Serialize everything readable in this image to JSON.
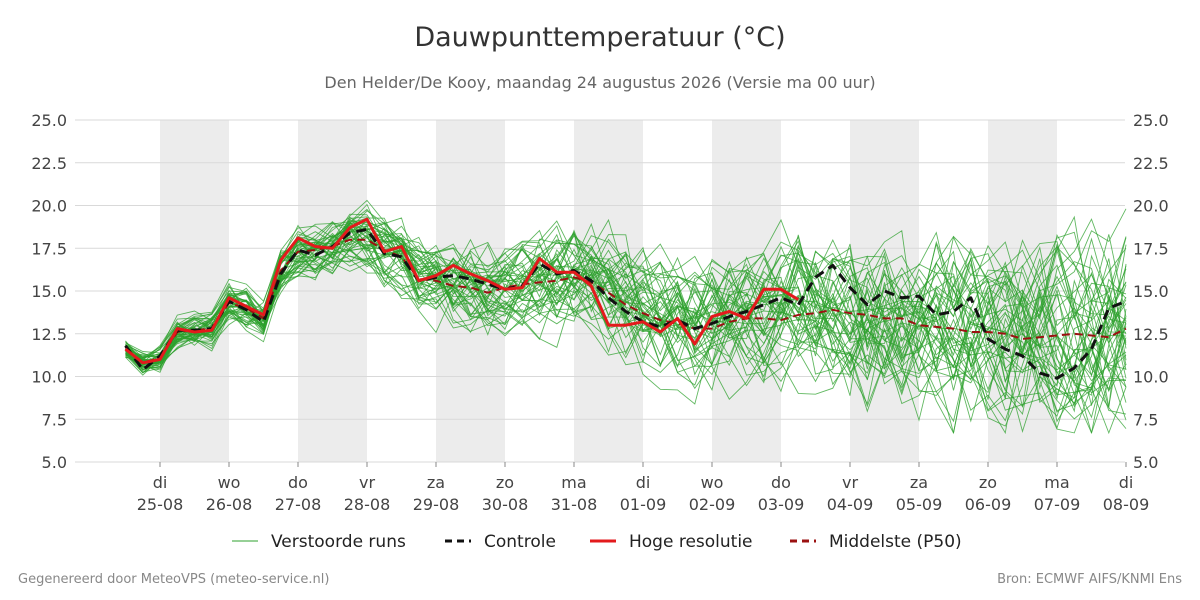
{
  "chart_data": {
    "type": "line",
    "title": "Dauwpunttemperatuur (°C)",
    "subtitle": "Den Helder/De Kooy, maandag 24 augustus 2026 (Versie ma 00 uur)",
    "ylim": [
      5,
      25
    ],
    "xlim": [
      "2026-08-24T12:00",
      "2026-09-08T00:00"
    ],
    "yticks": [
      5.0,
      7.5,
      10.0,
      12.5,
      15.0,
      17.5,
      20.0,
      22.5,
      25.0
    ],
    "yaxis_both_sides": true,
    "grid": "horizontal",
    "weekend_shading": "alternating days",
    "xticks": [
      {
        "date": "2026-08-25",
        "day": "di",
        "label": "25-08"
      },
      {
        "date": "2026-08-26",
        "day": "wo",
        "label": "26-08"
      },
      {
        "date": "2026-08-27",
        "day": "do",
        "label": "27-08"
      },
      {
        "date": "2026-08-28",
        "day": "vr",
        "label": "28-08"
      },
      {
        "date": "2026-08-29",
        "day": "za",
        "label": "29-08"
      },
      {
        "date": "2026-08-30",
        "day": "zo",
        "label": "30-08"
      },
      {
        "date": "2026-08-31",
        "day": "ma",
        "label": "31-08"
      },
      {
        "date": "2026-09-01",
        "day": "di",
        "label": "01-09"
      },
      {
        "date": "2026-09-02",
        "day": "wo",
        "label": "02-09"
      },
      {
        "date": "2026-09-03",
        "day": "do",
        "label": "03-09"
      },
      {
        "date": "2026-09-04",
        "day": "vr",
        "label": "04-09"
      },
      {
        "date": "2026-09-05",
        "day": "za",
        "label": "05-09"
      },
      {
        "date": "2026-09-06",
        "day": "zo",
        "label": "06-09"
      },
      {
        "date": "2026-09-07",
        "day": "ma",
        "label": "07-09"
      },
      {
        "date": "2026-09-08",
        "day": "di",
        "label": "08-09"
      }
    ],
    "shaded_days": [
      "2026-08-25",
      "2026-08-27",
      "2026-08-29",
      "2026-08-31",
      "2026-09-02",
      "2026-09-04",
      "2026-09-06"
    ],
    "series": [
      {
        "name": "Controle",
        "color": "#111111",
        "dash": true,
        "points": [
          [
            "2026-08-24T12:00",
            11.8
          ],
          [
            "2026-08-24T18:00",
            10.4
          ],
          [
            "2026-08-25T00:00",
            11.2
          ],
          [
            "2026-08-25T06:00",
            12.7
          ],
          [
            "2026-08-25T12:00",
            12.7
          ],
          [
            "2026-08-25T18:00",
            12.8
          ],
          [
            "2026-08-26T00:00",
            14.4
          ],
          [
            "2026-08-26T06:00",
            13.9
          ],
          [
            "2026-08-26T12:00",
            13.2
          ],
          [
            "2026-08-26T18:00",
            16.0
          ],
          [
            "2026-08-27T00:00",
            17.4
          ],
          [
            "2026-08-27T06:00",
            17.1
          ],
          [
            "2026-08-27T12:00",
            17.6
          ],
          [
            "2026-08-27T18:00",
            18.4
          ],
          [
            "2026-08-28T00:00",
            18.6
          ],
          [
            "2026-08-28T06:00",
            17.2
          ],
          [
            "2026-08-28T12:00",
            17.0
          ],
          [
            "2026-08-28T18:00",
            15.6
          ],
          [
            "2026-08-29T00:00",
            15.8
          ],
          [
            "2026-08-29T06:00",
            15.9
          ],
          [
            "2026-08-29T12:00",
            15.7
          ],
          [
            "2026-08-29T18:00",
            15.4
          ],
          [
            "2026-08-30T00:00",
            15.1
          ],
          [
            "2026-08-30T06:00",
            15.3
          ],
          [
            "2026-08-30T12:00",
            16.6
          ],
          [
            "2026-08-30T18:00",
            16.0
          ],
          [
            "2026-08-31T00:00",
            16.2
          ],
          [
            "2026-08-31T06:00",
            15.6
          ],
          [
            "2026-08-31T12:00",
            14.6
          ],
          [
            "2026-08-31T18:00",
            13.8
          ],
          [
            "2026-09-01T00:00",
            13.2
          ],
          [
            "2026-09-01T06:00",
            12.9
          ],
          [
            "2026-09-01T12:00",
            13.3
          ],
          [
            "2026-09-01T18:00",
            12.8
          ],
          [
            "2026-09-02T00:00",
            13.1
          ],
          [
            "2026-09-02T06:00",
            13.5
          ],
          [
            "2026-09-02T12:00",
            13.8
          ],
          [
            "2026-09-02T18:00",
            14.2
          ],
          [
            "2026-09-03T00:00",
            14.6
          ],
          [
            "2026-09-03T06:00",
            14.2
          ],
          [
            "2026-09-03T12:00",
            15.8
          ],
          [
            "2026-09-03T18:00",
            16.5
          ],
          [
            "2026-09-04T00:00",
            15.2
          ],
          [
            "2026-09-04T06:00",
            14.2
          ],
          [
            "2026-09-04T12:00",
            15.0
          ],
          [
            "2026-09-04T18:00",
            14.6
          ],
          [
            "2026-09-05T00:00",
            14.7
          ],
          [
            "2026-09-05T06:00",
            13.6
          ],
          [
            "2026-09-05T12:00",
            13.8
          ],
          [
            "2026-09-05T18:00",
            14.6
          ],
          [
            "2026-09-06T00:00",
            12.2
          ],
          [
            "2026-09-06T06:00",
            11.6
          ],
          [
            "2026-09-06T12:00",
            11.2
          ],
          [
            "2026-09-06T18:00",
            10.2
          ],
          [
            "2026-09-07T00:00",
            9.9
          ],
          [
            "2026-09-07T06:00",
            10.5
          ],
          [
            "2026-09-07T12:00",
            11.6
          ],
          [
            "2026-09-07T18:00",
            14.0
          ],
          [
            "2026-09-08T00:00",
            14.4
          ]
        ]
      },
      {
        "name": "Hoge resolutie",
        "color": "#e31a1c",
        "dash": false,
        "points": [
          [
            "2026-08-24T12:00",
            11.6
          ],
          [
            "2026-08-24T18:00",
            10.8
          ],
          [
            "2026-08-25T00:00",
            11.0
          ],
          [
            "2026-08-25T06:00",
            12.8
          ],
          [
            "2026-08-25T12:00",
            12.6
          ],
          [
            "2026-08-25T18:00",
            12.7
          ],
          [
            "2026-08-26T00:00",
            14.6
          ],
          [
            "2026-08-26T06:00",
            14.1
          ],
          [
            "2026-08-26T12:00",
            13.6
          ],
          [
            "2026-08-26T18:00",
            16.8
          ],
          [
            "2026-08-27T00:00",
            18.1
          ],
          [
            "2026-08-27T06:00",
            17.6
          ],
          [
            "2026-08-27T12:00",
            17.5
          ],
          [
            "2026-08-27T18:00",
            18.7
          ],
          [
            "2026-08-28T00:00",
            19.2
          ],
          [
            "2026-08-28T06:00",
            17.3
          ],
          [
            "2026-08-28T12:00",
            17.6
          ],
          [
            "2026-08-28T18:00",
            15.6
          ],
          [
            "2026-08-29T00:00",
            15.9
          ],
          [
            "2026-08-29T06:00",
            16.5
          ],
          [
            "2026-08-29T12:00",
            16.0
          ],
          [
            "2026-08-29T18:00",
            15.6
          ],
          [
            "2026-08-30T00:00",
            15.1
          ],
          [
            "2026-08-30T06:00",
            15.2
          ],
          [
            "2026-08-30T12:00",
            16.9
          ],
          [
            "2026-08-30T18:00",
            16.1
          ],
          [
            "2026-08-31T00:00",
            16.1
          ],
          [
            "2026-08-31T06:00",
            15.3
          ],
          [
            "2026-08-31T12:00",
            13.0
          ],
          [
            "2026-08-31T18:00",
            13.0
          ],
          [
            "2026-09-01T00:00",
            13.2
          ],
          [
            "2026-09-01T06:00",
            12.6
          ],
          [
            "2026-09-01T12:00",
            13.4
          ],
          [
            "2026-09-01T18:00",
            11.9
          ],
          [
            "2026-09-02T00:00",
            13.5
          ],
          [
            "2026-09-02T06:00",
            13.8
          ],
          [
            "2026-09-02T12:00",
            13.4
          ],
          [
            "2026-09-02T18:00",
            15.1
          ],
          [
            "2026-09-03T00:00",
            15.1
          ],
          [
            "2026-09-03T06:00",
            14.5
          ]
        ]
      },
      {
        "name": "Middelste (P50)",
        "color": "#9b1111",
        "dash": true,
        "points": [
          [
            "2026-08-24T12:00",
            11.6
          ],
          [
            "2026-08-24T18:00",
            10.8
          ],
          [
            "2026-08-25T00:00",
            11.1
          ],
          [
            "2026-08-25T06:00",
            12.6
          ],
          [
            "2026-08-25T12:00",
            12.7
          ],
          [
            "2026-08-25T18:00",
            12.8
          ],
          [
            "2026-08-26T00:00",
            14.3
          ],
          [
            "2026-08-26T06:00",
            14.0
          ],
          [
            "2026-08-26T12:00",
            13.4
          ],
          [
            "2026-08-26T18:00",
            16.2
          ],
          [
            "2026-08-27T00:00",
            17.3
          ],
          [
            "2026-08-27T06:00",
            17.4
          ],
          [
            "2026-08-27T12:00",
            17.6
          ],
          [
            "2026-08-27T18:00",
            18.0
          ],
          [
            "2026-08-28T00:00",
            18.0
          ],
          [
            "2026-08-28T06:00",
            17.4
          ],
          [
            "2026-08-28T12:00",
            17.0
          ],
          [
            "2026-08-28T18:00",
            15.7
          ],
          [
            "2026-08-29T00:00",
            15.6
          ],
          [
            "2026-08-29T06:00",
            15.3
          ],
          [
            "2026-08-29T12:00",
            15.2
          ],
          [
            "2026-08-29T18:00",
            14.9
          ],
          [
            "2026-08-30T00:00",
            15.2
          ],
          [
            "2026-08-30T06:00",
            15.4
          ],
          [
            "2026-08-30T12:00",
            15.5
          ],
          [
            "2026-08-30T18:00",
            15.6
          ],
          [
            "2026-08-31T00:00",
            15.8
          ],
          [
            "2026-08-31T06:00",
            15.5
          ],
          [
            "2026-08-31T12:00",
            14.9
          ],
          [
            "2026-08-31T18:00",
            14.2
          ],
          [
            "2026-09-01T00:00",
            13.7
          ],
          [
            "2026-09-01T06:00",
            13.3
          ],
          [
            "2026-09-01T12:00",
            13.1
          ],
          [
            "2026-09-01T18:00",
            12.8
          ],
          [
            "2026-09-02T00:00",
            12.8
          ],
          [
            "2026-09-02T06:00",
            13.2
          ],
          [
            "2026-09-02T12:00",
            13.4
          ],
          [
            "2026-09-02T18:00",
            13.4
          ],
          [
            "2026-09-03T00:00",
            13.3
          ],
          [
            "2026-09-03T06:00",
            13.6
          ],
          [
            "2026-09-03T12:00",
            13.7
          ],
          [
            "2026-09-03T18:00",
            13.9
          ],
          [
            "2026-09-04T00:00",
            13.7
          ],
          [
            "2026-09-04T06:00",
            13.6
          ],
          [
            "2026-09-04T12:00",
            13.4
          ],
          [
            "2026-09-04T18:00",
            13.4
          ],
          [
            "2026-09-05T00:00",
            13.0
          ],
          [
            "2026-09-05T06:00",
            12.9
          ],
          [
            "2026-09-05T12:00",
            12.8
          ],
          [
            "2026-09-05T18:00",
            12.6
          ],
          [
            "2026-09-06T00:00",
            12.6
          ],
          [
            "2026-09-06T06:00",
            12.5
          ],
          [
            "2026-09-06T12:00",
            12.2
          ],
          [
            "2026-09-06T18:00",
            12.3
          ],
          [
            "2026-09-07T00:00",
            12.4
          ],
          [
            "2026-09-07T06:00",
            12.5
          ],
          [
            "2026-09-07T12:00",
            12.4
          ],
          [
            "2026-09-07T18:00",
            12.3
          ],
          [
            "2026-09-08T00:00",
            12.8
          ]
        ]
      }
    ],
    "ensemble": {
      "name": "Verstoorde runs",
      "color": "#2ca02c",
      "members": 50,
      "start": "2026-08-24T12:00",
      "end": "2026-09-08T00:00",
      "envelope": {
        "2026-08-26": [
          12.5,
          15.5
        ],
        "2026-08-28": [
          15.0,
          20.3
        ],
        "2026-08-30": [
          12.0,
          17.5
        ],
        "2026-09-01": [
          8.5,
          16.0
        ],
        "2026-09-04": [
          7.1,
          18.6
        ],
        "2026-09-07": [
          6.7,
          19.9
        ]
      }
    },
    "legend": {
      "position": "bottom",
      "items": [
        {
          "label": "Verstoorde runs",
          "color": "#2ca02c",
          "style": "thin"
        },
        {
          "label": "Controle",
          "color": "#111111",
          "style": "dash"
        },
        {
          "label": "Hoge resolutie",
          "color": "#e31a1c",
          "style": "solid"
        },
        {
          "label": "Middelste (P50)",
          "color": "#9b1111",
          "style": "dash"
        }
      ]
    }
  },
  "footer": {
    "left": "Gegenereerd door MeteoVPS (meteo-service.nl)",
    "right": "Bron: ECMWF AIFS/KNMI Ens"
  }
}
